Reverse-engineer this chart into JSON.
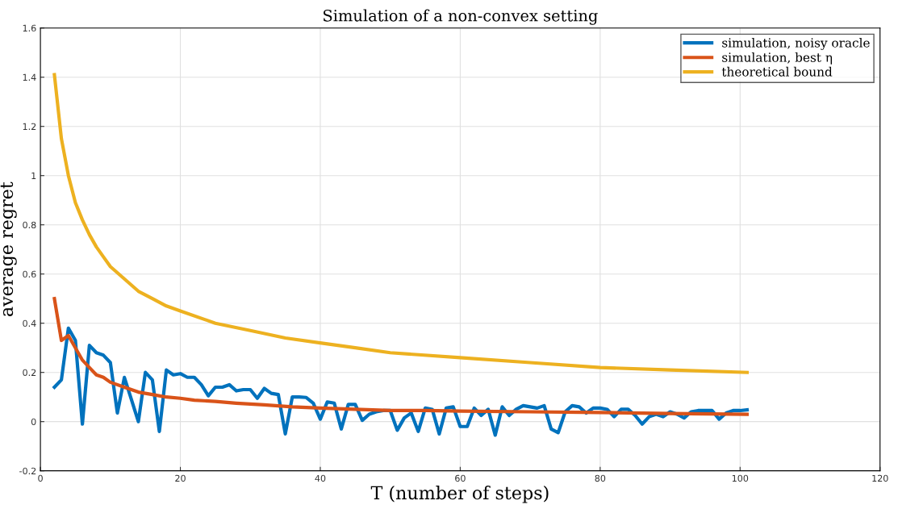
{
  "chart_data": {
    "type": "line",
    "title": "Simulation of a non-convex setting",
    "xlabel": "T (number of steps)",
    "ylabel": "average regret",
    "xlim": [
      0,
      120
    ],
    "xticks": [
      0,
      20,
      40,
      60,
      80,
      100,
      120
    ],
    "ylim": [
      -0.2,
      1.6
    ],
    "yticks": [
      -0.2,
      0,
      0.2,
      0.4,
      0.6,
      0.8,
      1,
      1.2,
      1.4,
      1.6
    ],
    "grid": true,
    "legend": "top right",
    "marker": "none",
    "line_style": "solid",
    "series": [
      {
        "name": "simulation, noisy oracle",
        "color": "#0072bd",
        "x": [
          2,
          3,
          4,
          5,
          6,
          7,
          8,
          9,
          10,
          11,
          12,
          13,
          14,
          15,
          16,
          17,
          18,
          19,
          20,
          21,
          22,
          23,
          24,
          25,
          26,
          27,
          28,
          29,
          30,
          31,
          32,
          33,
          34,
          35,
          36,
          37,
          38,
          39,
          40,
          41,
          42,
          43,
          44,
          45,
          46,
          47,
          48,
          49,
          50,
          51,
          52,
          53,
          54,
          55,
          56,
          57,
          58,
          59,
          60,
          61,
          62,
          63,
          64,
          65,
          66,
          67,
          68,
          69,
          70,
          71,
          72,
          73,
          74,
          75,
          76,
          77,
          78,
          79,
          80,
          81,
          82,
          83,
          84,
          85,
          86,
          87,
          88,
          89,
          90,
          91,
          92,
          93,
          94,
          95,
          96,
          97,
          98,
          99,
          100,
          101
        ],
        "values": [
          0.14,
          0.17,
          0.38,
          0.33,
          -0.01,
          0.31,
          0.28,
          0.27,
          0.24,
          0.035,
          0.18,
          0.09,
          0.0,
          0.2,
          0.17,
          -0.04,
          0.21,
          0.19,
          0.195,
          0.18,
          0.18,
          0.15,
          0.105,
          0.14,
          0.14,
          0.15,
          0.125,
          0.13,
          0.13,
          0.095,
          0.135,
          0.115,
          0.11,
          -0.05,
          0.1,
          0.1,
          0.098,
          0.075,
          0.01,
          0.08,
          0.075,
          -0.03,
          0.07,
          0.07,
          0.005,
          0.03,
          0.04,
          0.045,
          0.045,
          -0.035,
          0.015,
          0.035,
          -0.04,
          0.055,
          0.05,
          -0.05,
          0.055,
          0.06,
          -0.02,
          -0.02,
          0.055,
          0.025,
          0.05,
          -0.055,
          0.06,
          0.025,
          0.05,
          0.065,
          0.06,
          0.055,
          0.065,
          -0.03,
          -0.045,
          0.04,
          0.065,
          0.06,
          0.035,
          0.055,
          0.055,
          0.05,
          0.02,
          0.05,
          0.05,
          0.025,
          -0.01,
          0.02,
          0.03,
          0.02,
          0.04,
          0.03,
          0.015,
          0.04,
          0.045,
          0.045,
          0.045,
          0.01,
          0.035,
          0.045,
          0.045,
          0.048
        ]
      },
      {
        "name": "simulation, best η",
        "color": "#d95319",
        "x": [
          2,
          3,
          4,
          5,
          6,
          7,
          8,
          9,
          10,
          12,
          14,
          16,
          18,
          20,
          22,
          25,
          28,
          32,
          36,
          40,
          45,
          50,
          55,
          60,
          70,
          80,
          90,
          101
        ],
        "values": [
          0.5,
          0.33,
          0.35,
          0.3,
          0.25,
          0.22,
          0.19,
          0.18,
          0.16,
          0.14,
          0.12,
          0.11,
          0.1,
          0.095,
          0.087,
          0.082,
          0.075,
          0.068,
          0.06,
          0.055,
          0.05,
          0.045,
          0.045,
          0.043,
          0.04,
          0.037,
          0.033,
          0.03
        ]
      },
      {
        "name": "theoretical bound",
        "color": "#edb120",
        "x": [
          2,
          3,
          4,
          5,
          6,
          7,
          8,
          9,
          10,
          12,
          14,
          16,
          18,
          20,
          25,
          30,
          35,
          40,
          45,
          50,
          60,
          70,
          80,
          90,
          101
        ],
        "values": [
          1.41,
          1.15,
          1.0,
          0.89,
          0.82,
          0.76,
          0.71,
          0.67,
          0.63,
          0.58,
          0.53,
          0.5,
          0.47,
          0.45,
          0.4,
          0.37,
          0.34,
          0.32,
          0.3,
          0.28,
          0.26,
          0.24,
          0.22,
          0.21,
          0.2
        ]
      }
    ]
  }
}
